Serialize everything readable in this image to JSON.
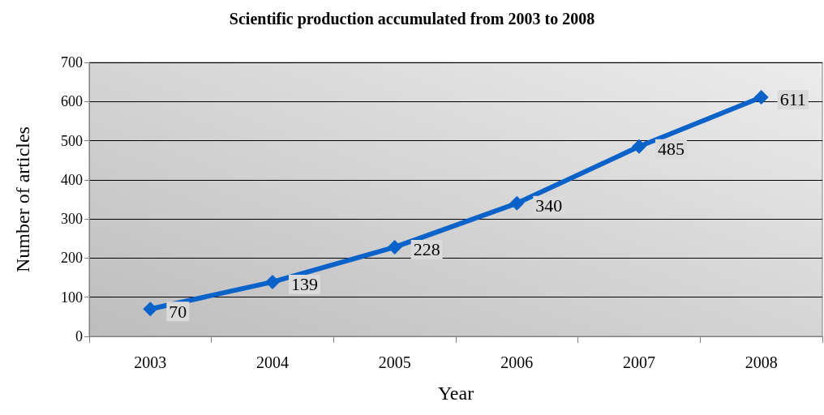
{
  "chart_data": {
    "type": "line",
    "title": "Scientific production accumulated from 2003 to 2008",
    "xlabel": "Year",
    "ylabel": "Number of articles",
    "categories": [
      "2003",
      "2004",
      "2005",
      "2006",
      "2007",
      "2008"
    ],
    "series": [
      {
        "color": "#0b63c9",
        "values": [
          70,
          139,
          228,
          340,
          485,
          611
        ]
      }
    ],
    "ylim": [
      0,
      700
    ],
    "yticks": [
      0,
      100,
      200,
      300,
      400,
      500,
      600,
      700
    ],
    "grid": "y",
    "marker": "diamond",
    "line_style": "solid",
    "data_labels": true
  }
}
